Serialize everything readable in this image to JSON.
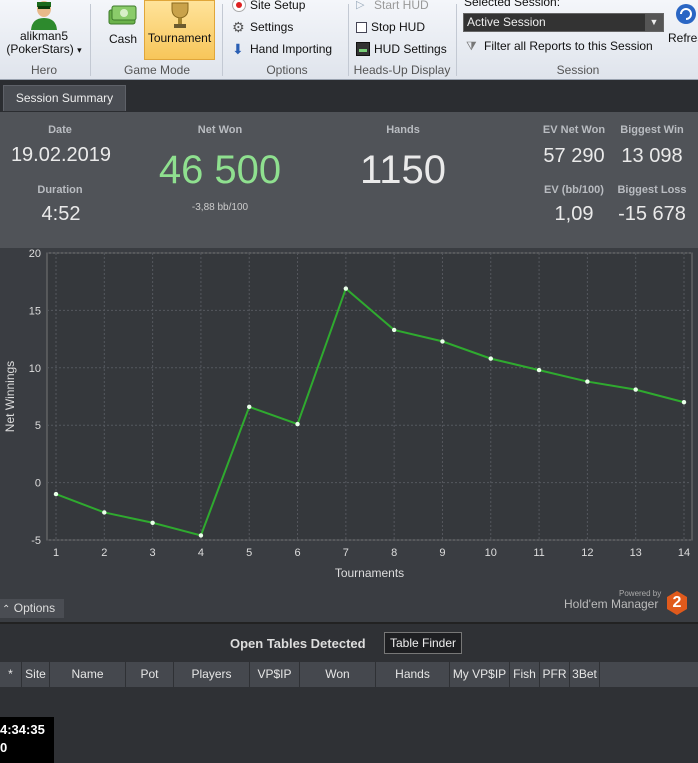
{
  "ribbon": {
    "hero": {
      "name_line1": "alikman5",
      "name_line2": "(PokerStars)",
      "caret": "▾",
      "group_label": "Hero"
    },
    "game_mode": {
      "cash_label": "Cash",
      "tournament_label": "Tournament",
      "group_label": "Game Mode"
    },
    "options": {
      "site_setup": "Site Setup",
      "settings": "Settings",
      "hand_importing": "Hand Importing",
      "group_label": "Options"
    },
    "hud": {
      "start_hud": "Start HUD",
      "stop_hud": "Stop HUD",
      "hud_settings": "HUD Settings",
      "group_label": "Heads-Up Display"
    },
    "session": {
      "selected_label": "Selected Session:",
      "selected_value": "Active Session",
      "filter_label": "Filter all Reports to this Session",
      "refresh_label": "Refres",
      "group_label": "Session"
    }
  },
  "tabs": [
    {
      "label": "Session Summary"
    }
  ],
  "summary": {
    "date_label": "Date",
    "date_value": "19.02.2019",
    "duration_label": "Duration",
    "duration_value": "4:52",
    "net_won_label": "Net Won",
    "net_won_value": "46 500",
    "net_won_sub": "-3,88 bb/100",
    "hands_label": "Hands",
    "hands_value": "1150",
    "ev_net_won_label": "EV Net Won",
    "ev_net_won_value": "57 290",
    "biggest_win_label": "Biggest Win",
    "biggest_win_value": "13 098",
    "ev_bb_label": "EV (bb/100)",
    "ev_bb_value": "1,09",
    "biggest_loss_label": "Biggest Loss",
    "biggest_loss_value": "-15 678",
    "net_won_color": "#8fe08f"
  },
  "chart_data": {
    "type": "line",
    "xlabel": "Tournaments",
    "ylabel": "Net Winnings",
    "x": [
      1,
      2,
      3,
      4,
      5,
      6,
      7,
      8,
      9,
      10,
      11,
      12,
      13,
      14
    ],
    "series": [
      {
        "values": [
          -1.0,
          -2.6,
          -3.5,
          -4.6,
          6.6,
          5.1,
          16.9,
          13.3,
          12.3,
          10.8,
          9.8,
          8.8,
          8.1,
          7.0
        ]
      }
    ],
    "xticks": [
      "1",
      "2",
      "3",
      "4",
      "5",
      "6",
      "7",
      "8",
      "9",
      "10",
      "11",
      "12",
      "13",
      "14"
    ],
    "yticks": [
      "-5",
      "0",
      "5",
      "10",
      "15",
      "20"
    ],
    "ylim": [
      -5,
      20
    ],
    "xlim": [
      1,
      14
    ],
    "grid": true,
    "line_color": "#2faa2f"
  },
  "chart_footer": {
    "options_label": "Options",
    "options_caret": "⌃",
    "powered_by": "Powered by",
    "brand": "Hold'em Manager",
    "brand_badge": "2"
  },
  "open_tables": {
    "title": "Open Tables Detected",
    "table_finder_label": "Table Finder",
    "columns": [
      "*",
      "Site",
      "Name",
      "Pot",
      "Players",
      "VP$IP",
      "Won",
      "Hands",
      "My VP$IP",
      "Fish",
      "PFR",
      "3Bet"
    ]
  },
  "clock": {
    "time": "4:34:35",
    "sub": "0"
  }
}
